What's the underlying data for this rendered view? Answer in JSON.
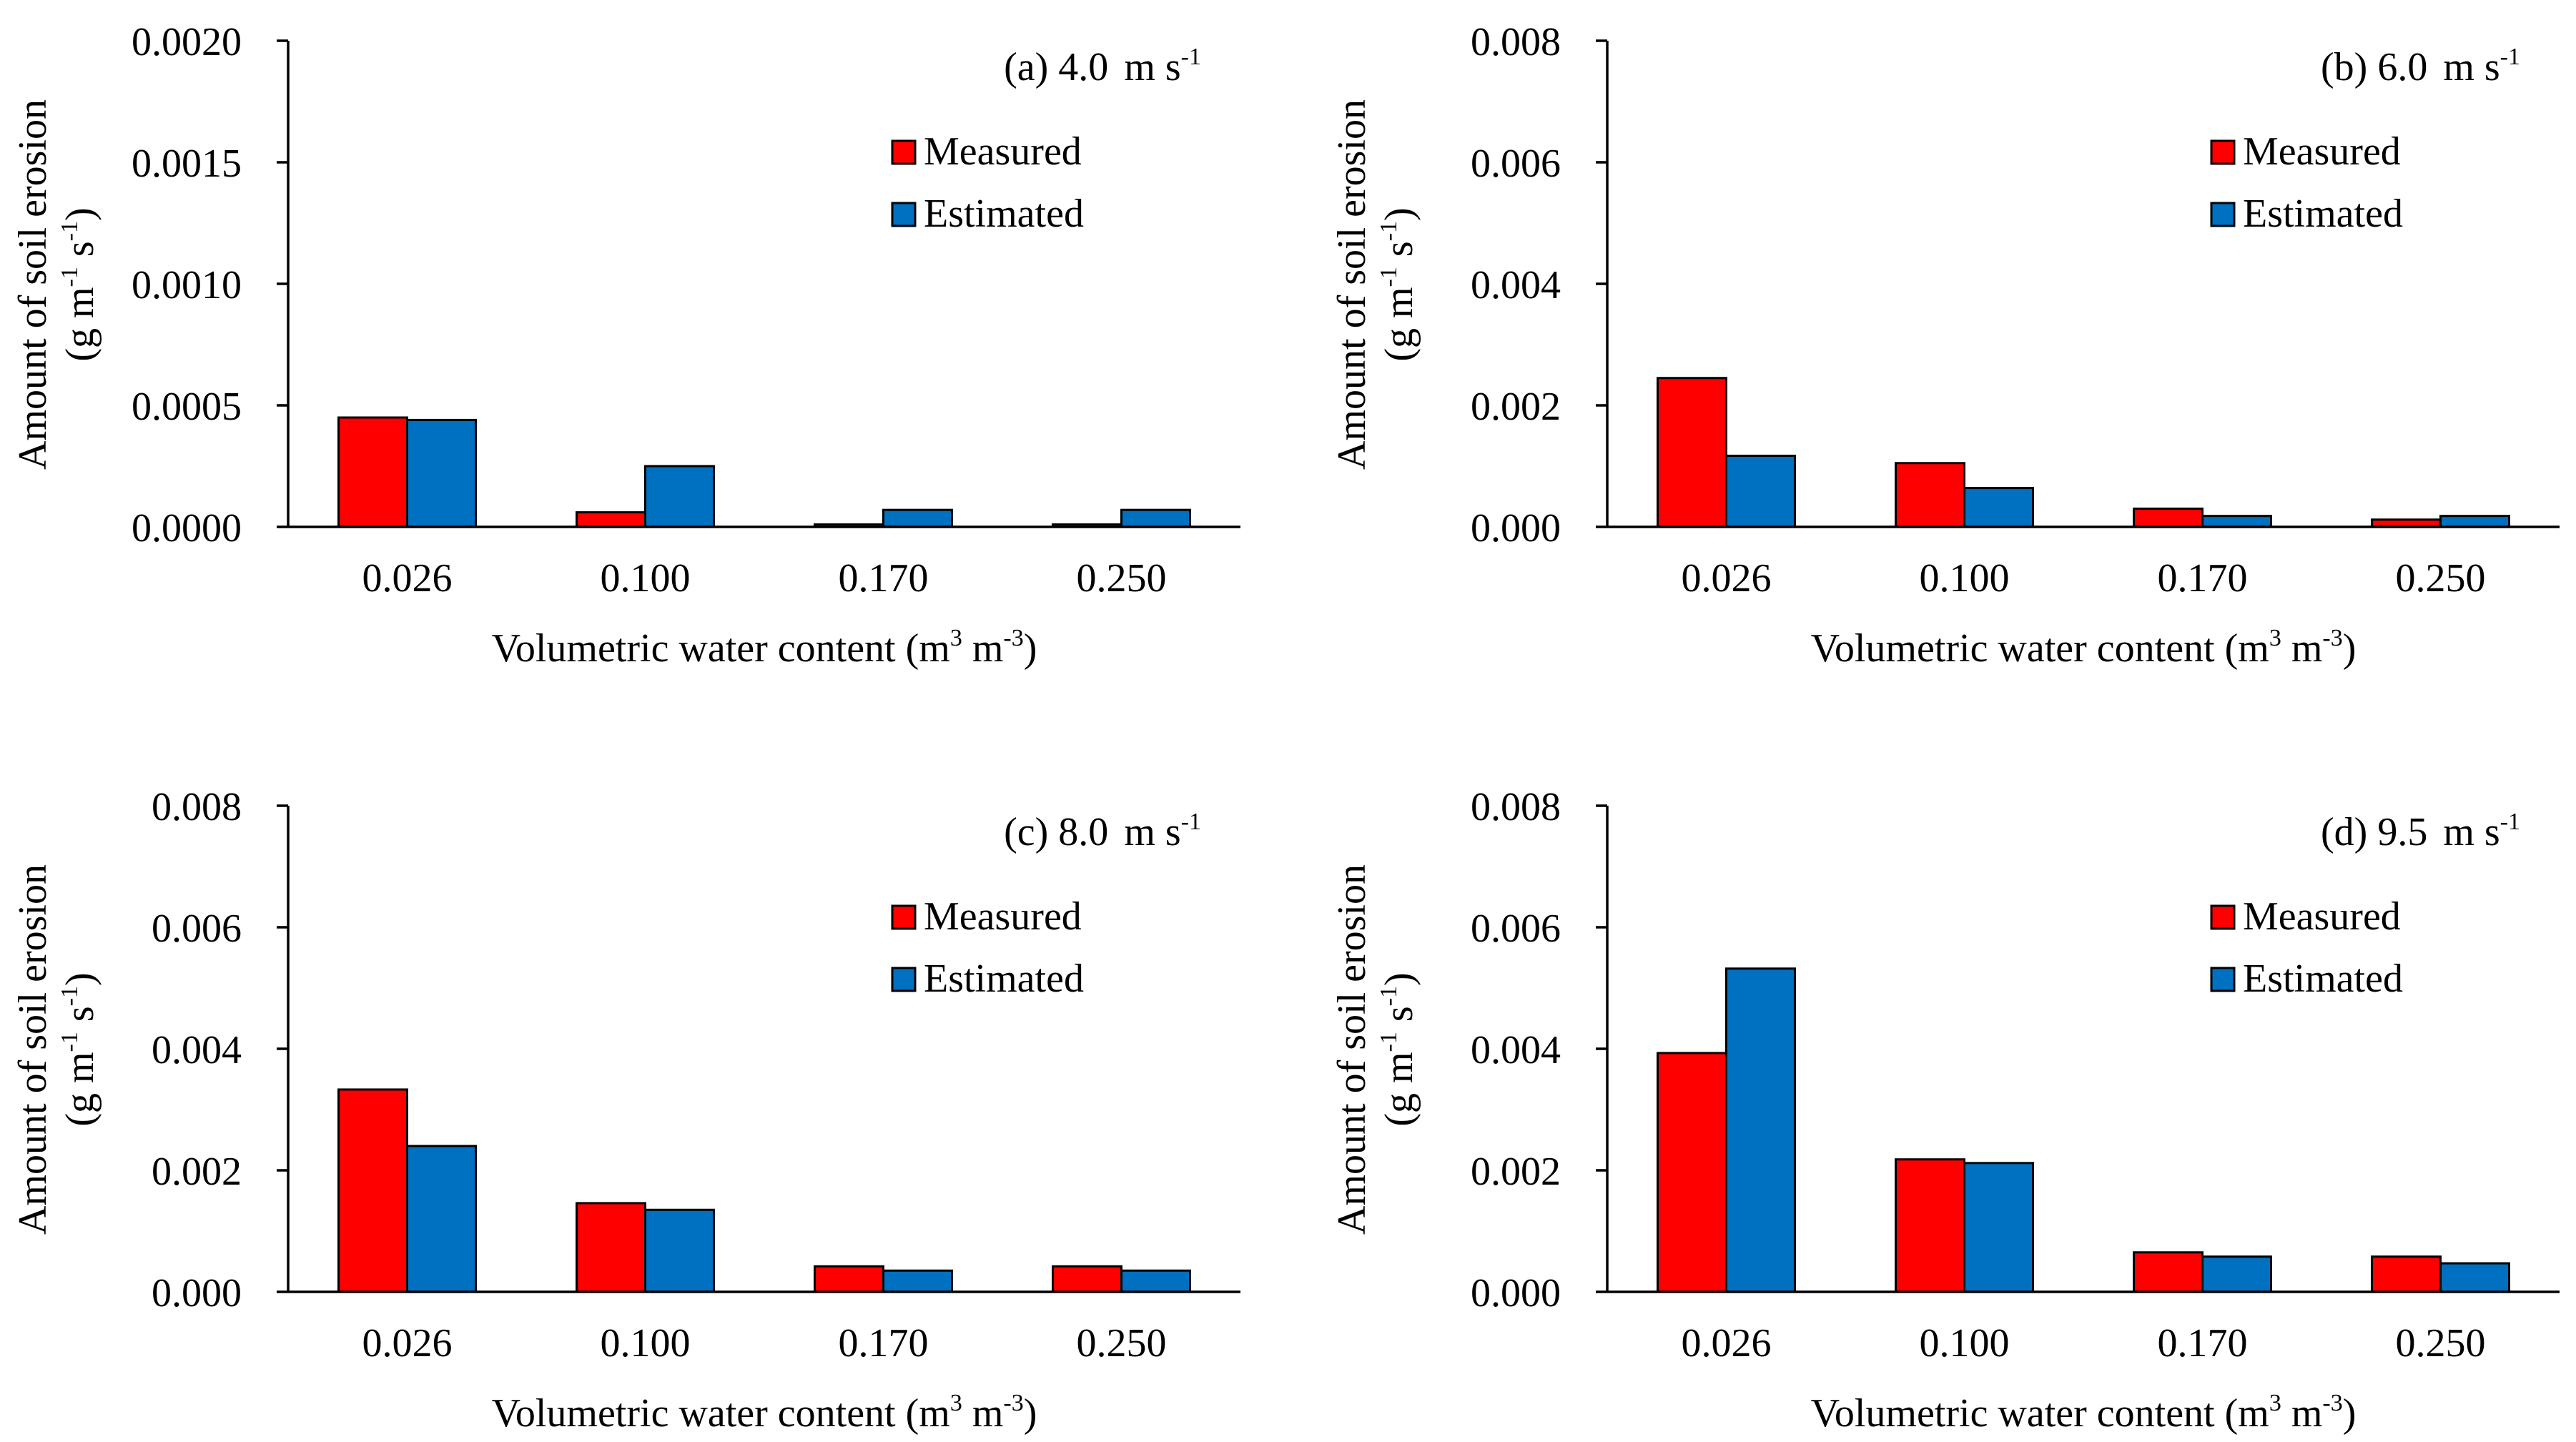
{
  "chart_data": [
    {
      "type": "bar",
      "title": "(a) 4.0",
      "title_unit": "m s",
      "title_sup": "-1",
      "categories": [
        "0.026",
        "0.100",
        "0.170",
        "0.250"
      ],
      "series": [
        {
          "name": "Measured",
          "values": [
            0.00045,
            6e-05,
            1e-05,
            1e-05
          ]
        },
        {
          "name": "Estimated",
          "values": [
            0.00044,
            0.00025,
            7e-05,
            7e-05
          ]
        }
      ],
      "ylim": [
        0,
        0.002
      ],
      "yticks": [
        "0.0000",
        "0.0005",
        "0.0010",
        "0.0015",
        "0.0020"
      ],
      "ylabel_line1": "Amount of soil erosion",
      "ylabel_line2": "(g m",
      "ylabel_sup1": "-1",
      "ylabel_mid": " s",
      "ylabel_sup2": "-1",
      "ylabel_end": ")",
      "xlabel": "Volumetric  water content (m",
      "xlabel_sup1": "3",
      "xlabel_mid": " m",
      "xlabel_sup2": "-3",
      "xlabel_end": ")",
      "legend": "top-right"
    },
    {
      "type": "bar",
      "title": "(b) 6.0",
      "title_unit": "m s",
      "title_sup": "-1",
      "categories": [
        "0.026",
        "0.100",
        "0.170",
        "0.250"
      ],
      "series": [
        {
          "name": "Measured",
          "values": [
            0.00245,
            0.00105,
            0.0003,
            0.00012
          ]
        },
        {
          "name": "Estimated",
          "values": [
            0.00117,
            0.00064,
            0.00018,
            0.00018
          ]
        }
      ],
      "ylim": [
        0,
        0.008
      ],
      "yticks": [
        "0.000",
        "0.002",
        "0.004",
        "0.006",
        "0.008"
      ],
      "ylabel_line1": "Amount of soil erosion",
      "ylabel_line2": "(g m",
      "ylabel_sup1": "-1",
      "ylabel_mid": " s",
      "ylabel_sup2": "-1",
      "ylabel_end": ")",
      "xlabel": "Volumetric  water content (m",
      "xlabel_sup1": "3",
      "xlabel_mid": " m",
      "xlabel_sup2": "-3",
      "xlabel_end": ")",
      "legend": "top-right"
    },
    {
      "type": "bar",
      "title": "(c) 8.0",
      "title_unit": "m s",
      "title_sup": "-1",
      "categories": [
        "0.026",
        "0.100",
        "0.170",
        "0.250"
      ],
      "series": [
        {
          "name": "Measured",
          "values": [
            0.00333,
            0.00146,
            0.00042,
            0.00042
          ]
        },
        {
          "name": "Estimated",
          "values": [
            0.0024,
            0.00135,
            0.00035,
            0.00035
          ]
        }
      ],
      "ylim": [
        0,
        0.008
      ],
      "yticks": [
        "0.000",
        "0.002",
        "0.004",
        "0.006",
        "0.008"
      ],
      "ylabel_line1": "Amount of soil erosion",
      "ylabel_line2": "(g m",
      "ylabel_sup1": "-1",
      "ylabel_mid": " s",
      "ylabel_sup2": "-1",
      "ylabel_end": ")",
      "xlabel": "Volumetric  water content (m",
      "xlabel_sup1": "3",
      "xlabel_mid": " m",
      "xlabel_sup2": "-3",
      "xlabel_end": ")",
      "legend": "top-right"
    },
    {
      "type": "bar",
      "title": "(d) 9.5",
      "title_unit": "m s",
      "title_sup": "-1",
      "categories": [
        "0.026",
        "0.100",
        "0.170",
        "0.250"
      ],
      "series": [
        {
          "name": "Measured",
          "values": [
            0.00393,
            0.00218,
            0.00065,
            0.00058
          ]
        },
        {
          "name": "Estimated",
          "values": [
            0.00532,
            0.00212,
            0.00058,
            0.00047
          ]
        }
      ],
      "ylim": [
        0,
        0.008
      ],
      "yticks": [
        "0.000",
        "0.002",
        "0.004",
        "0.006",
        "0.008"
      ],
      "ylabel_line1": "Amount of soil erosion",
      "ylabel_line2": "(g m",
      "ylabel_sup1": "-1",
      "ylabel_mid": " s",
      "ylabel_sup2": "-1",
      "ylabel_end": ")",
      "xlabel": "Volumetric  water content (m",
      "xlabel_sup1": "3",
      "xlabel_mid": " m",
      "xlabel_sup2": "-3",
      "xlabel_end": ")",
      "legend": "top-right"
    }
  ],
  "colors": {
    "measured": "#ff0000",
    "estimated": "#0070c0",
    "axis": "#000000"
  }
}
